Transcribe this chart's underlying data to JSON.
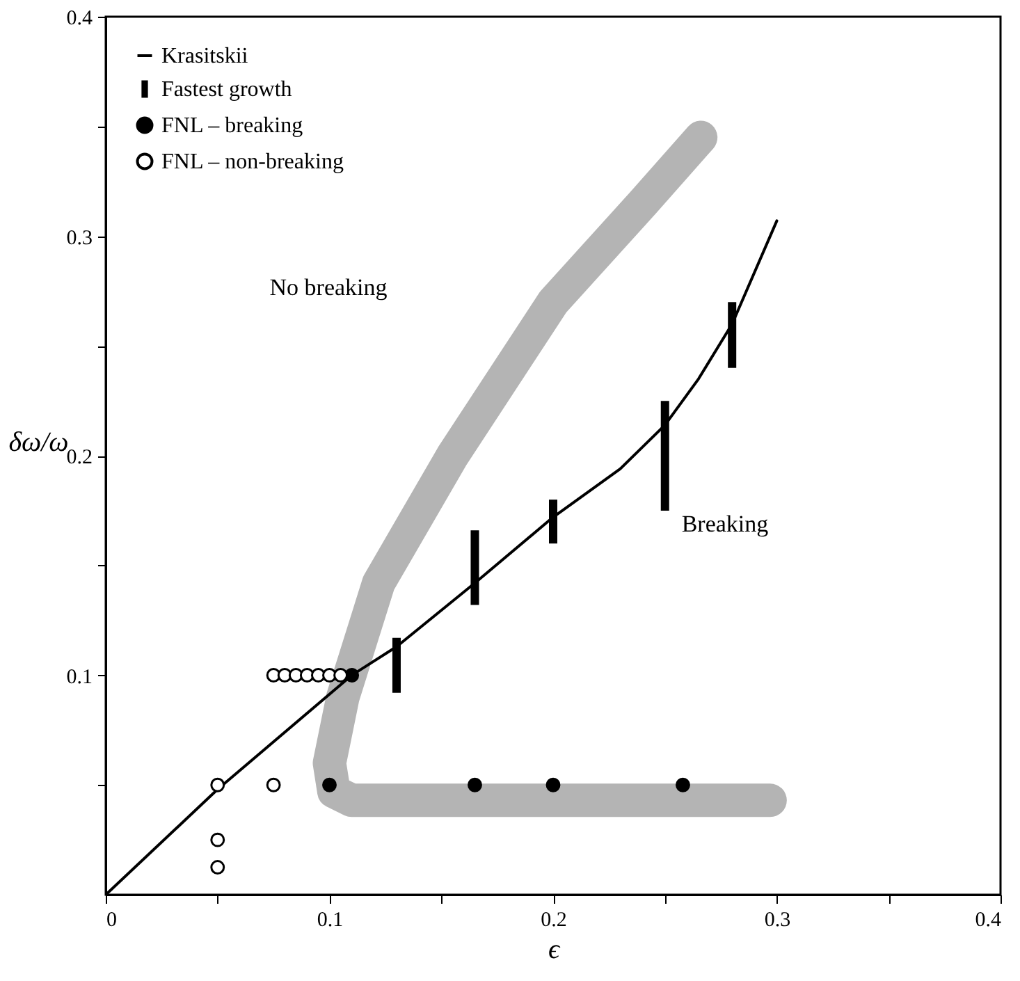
{
  "chart_data": {
    "type": "scatter",
    "xlabel": "ϵ",
    "ylabel": "δω/ω",
    "xlim": [
      0,
      0.4
    ],
    "ylim": [
      0,
      0.4
    ],
    "xticks": [
      0,
      {
        "value": 0.05,
        "label": null
      },
      0.1,
      {
        "value": 0.15,
        "label": null
      },
      0.2,
      {
        "value": 0.25,
        "label": null
      },
      0.3,
      {
        "value": 0.35,
        "label": null
      },
      0.4
    ],
    "yticks": [
      {
        "value": 0.05,
        "label": null
      },
      0.1,
      {
        "value": 0.15,
        "label": null
      },
      0.2,
      {
        "value": 0.25,
        "label": null
      },
      0.3,
      {
        "value": 0.35,
        "label": null
      },
      0.4
    ],
    "grid": false,
    "legend": "top left",
    "series": [
      {
        "type": "line",
        "color": "#b4b4b4",
        "x": [
          0.266,
          0.24,
          0.2,
          0.155,
          0.122,
          0.106,
          0.1,
          0.102,
          0.11,
          0.2,
          0.297
        ],
        "values": [
          0.345,
          0.315,
          0.27,
          0.2,
          0.142,
          0.09,
          0.06,
          0.047,
          0.043,
          0.043,
          0.043
        ]
      },
      {
        "type": "line",
        "name": "Krasitskii",
        "color": "#000000",
        "x": [
          0,
          0.05,
          0.11,
          0.13,
          0.165,
          0.2,
          0.23,
          0.25,
          0.265,
          0.28,
          0.3
        ],
        "values": [
          0,
          0.048,
          0.1,
          0.113,
          0.142,
          0.172,
          0.194,
          0.214,
          0.235,
          0.26,
          0.307
        ]
      },
      {
        "type": "bar",
        "name": "Fastest growth",
        "color": "#000000",
        "x": [
          0.13,
          0.165,
          0.2,
          0.25,
          0.28
        ],
        "base": [
          0.092,
          0.132,
          0.16,
          0.175,
          0.24
        ],
        "values": [
          0.025,
          0.034,
          0.02,
          0.05,
          0.03
        ]
      },
      {
        "name": "FNL – breaking",
        "marker": "circle",
        "color": "#000000",
        "x": [
          0.11,
          0.1,
          0.165,
          0.2,
          0.258
        ],
        "values": [
          0.1,
          0.05,
          0.05,
          0.05,
          0.05
        ]
      },
      {
        "name": "FNL – non-breaking",
        "marker": "circle",
        "color": "#ffffff",
        "x": [
          0.05,
          0.075,
          0.05,
          0.05,
          0.075,
          0.08,
          0.085,
          0.09,
          0.095,
          0.1,
          0.105
        ],
        "values": [
          0.05,
          0.05,
          0.025,
          0.0125,
          0.1,
          0.1,
          0.1,
          0.1,
          0.1,
          0.1,
          0.1
        ]
      }
    ],
    "annotations": [
      "No breaking",
      "Breaking"
    ]
  }
}
